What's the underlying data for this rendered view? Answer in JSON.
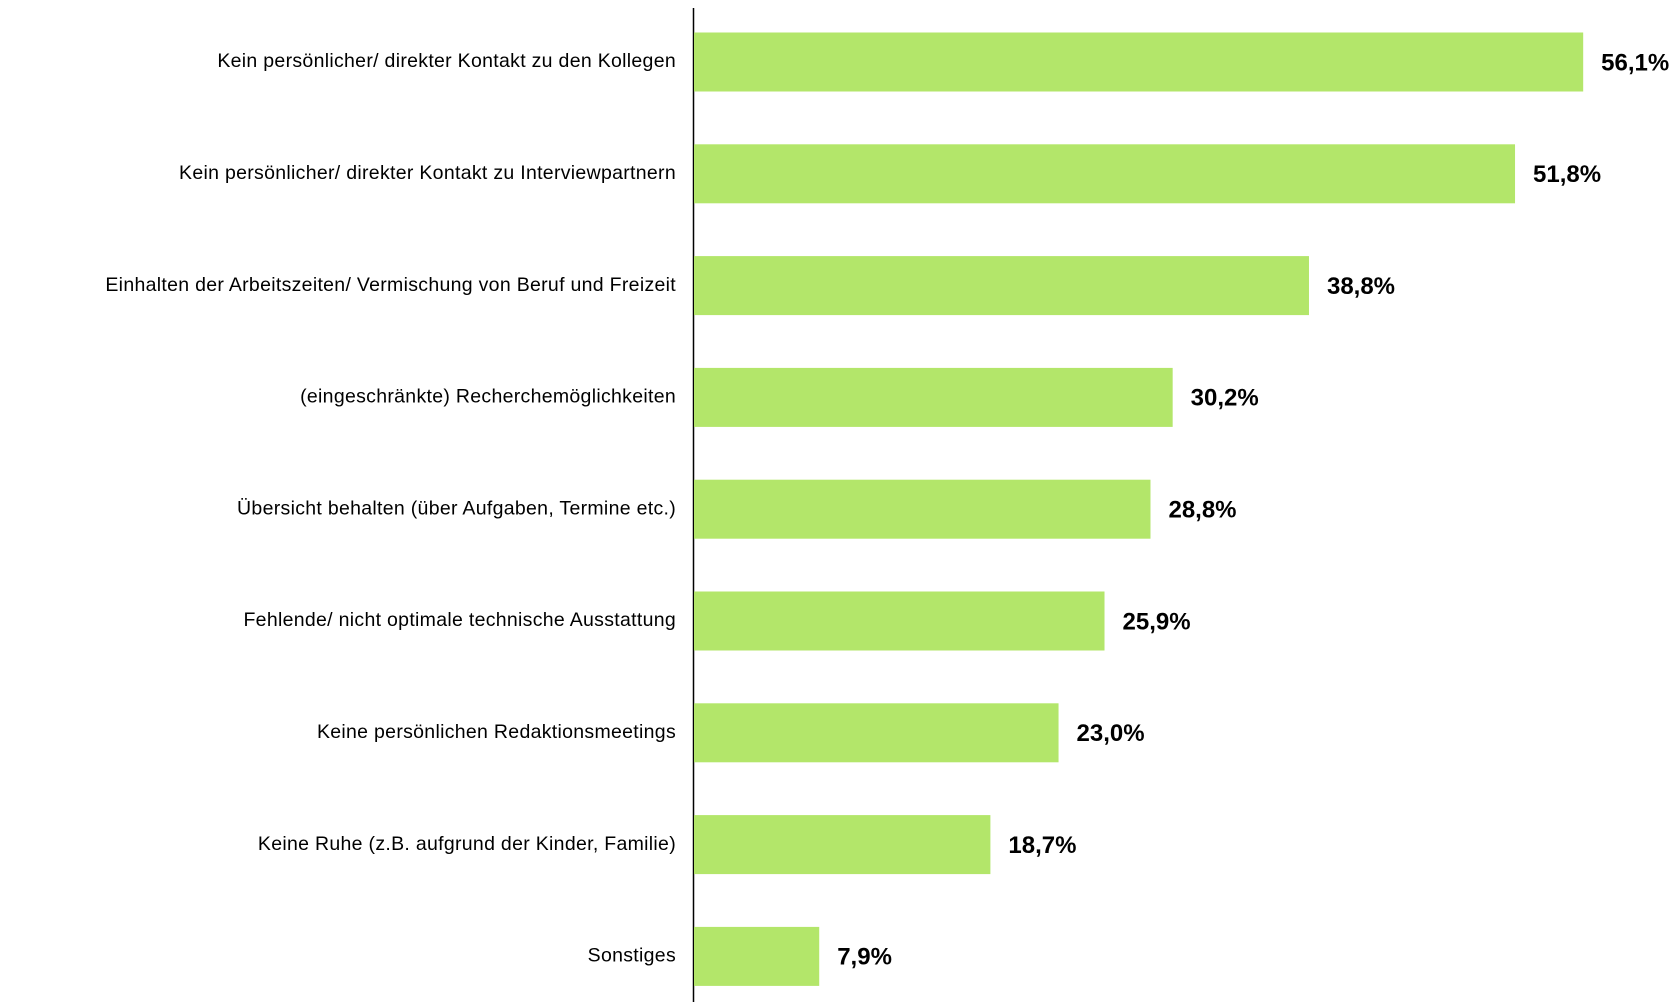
{
  "chart_data": {
    "type": "bar",
    "orientation": "horizontal",
    "categories": [
      "Kein persönlicher/ direkter Kontakt zu den Kollegen",
      "Kein persönlicher/ direkter Kontakt zu Interviewpartnern",
      "Einhalten der Arbeitszeiten/ Vermischung von Beruf und Freizeit",
      "(eingeschränkte) Recherchemöglichkeiten",
      "Übersicht behalten (über Aufgaben, Termine etc.)",
      "Fehlende/ nicht optimale technische Ausstattung",
      "Keine persönlichen Redaktionsmeetings",
      "Keine Ruhe (z.B. aufgrund der Kinder, Familie)",
      "Sonstiges"
    ],
    "values": [
      56.1,
      51.8,
      38.8,
      30.2,
      28.8,
      25.9,
      23.0,
      18.7,
      7.9
    ],
    "value_labels": [
      "56,1%",
      "51,8%",
      "38,8%",
      "30,2%",
      "28,8%",
      "25,9%",
      "23,0%",
      "18,7%",
      "7,9%"
    ],
    "color": "#b3e66a"
  }
}
